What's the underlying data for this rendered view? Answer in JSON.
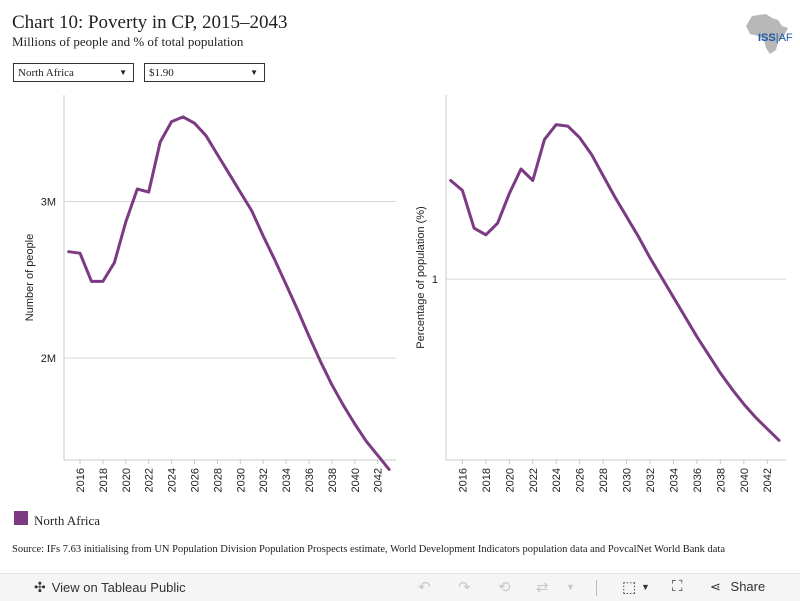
{
  "title": "Chart 10: Poverty in CP, 2015–2043",
  "subtitle": "Millions of people and % of total population",
  "logo": {
    "name": "ISS AF",
    "text": "ISS|AF"
  },
  "filters": {
    "region": {
      "value": "North Africa",
      "icon": "dropdown-arrow"
    },
    "threshold": {
      "value": "$1.90",
      "icon": "dropdown-arrow"
    }
  },
  "legend": {
    "label": "North Africa",
    "color": "#7b3a82"
  },
  "source": "Source: IFs 7.63 initialising from UN Population Division Population Prospects estimate, World Development Indicators population data and PovcalNet World Bank data",
  "toolbar": {
    "view_label": "View on Tableau Public",
    "share_label": "Share",
    "icons": [
      "tableau-icon",
      "undo-icon",
      "redo-icon",
      "revert-icon",
      "refresh-icon",
      "download-icon",
      "fullscreen-icon",
      "share-icon"
    ]
  },
  "chart_data": [
    {
      "type": "line",
      "xlabel": "",
      "ylabel": "Number of people",
      "x": [
        2015,
        2016,
        2017,
        2018,
        2019,
        2020,
        2021,
        2022,
        2023,
        2024,
        2025,
        2026,
        2027,
        2028,
        2029,
        2030,
        2031,
        2032,
        2033,
        2034,
        2035,
        2036,
        2037,
        2038,
        2039,
        2040,
        2041,
        2042,
        2043
      ],
      "series": [
        {
          "name": "North Africa",
          "color": "#7b3a82",
          "values": [
            2.68,
            2.67,
            2.49,
            2.49,
            2.61,
            2.87,
            3.08,
            3.06,
            3.38,
            3.51,
            3.54,
            3.5,
            3.42,
            3.3,
            3.18,
            3.06,
            2.94,
            2.78,
            2.63,
            2.47,
            2.31,
            2.14,
            1.98,
            1.83,
            1.7,
            1.58,
            1.47,
            1.38,
            1.29
          ]
        }
      ],
      "yticks": [
        {
          "value": 2.0,
          "label": "2M"
        },
        {
          "value": 3.0,
          "label": "3M"
        }
      ],
      "ylim": [
        1.35,
        3.68
      ],
      "xticks": [
        2016,
        2018,
        2020,
        2022,
        2024,
        2026,
        2028,
        2030,
        2032,
        2034,
        2036,
        2038,
        2040,
        2042
      ],
      "grid": true
    },
    {
      "type": "line",
      "xlabel": "",
      "ylabel": "Percentage of population (%)",
      "x": [
        2015,
        2016,
        2017,
        2018,
        2019,
        2020,
        2021,
        2022,
        2023,
        2024,
        2025,
        2026,
        2027,
        2028,
        2029,
        2030,
        2031,
        2032,
        2033,
        2034,
        2035,
        2036,
        2037,
        2038,
        2039,
        2040,
        2041,
        2042,
        2043
      ],
      "series": [
        {
          "name": "North Africa",
          "color": "#7b3a82",
          "values": [
            1.6,
            1.54,
            1.31,
            1.27,
            1.34,
            1.52,
            1.67,
            1.6,
            1.85,
            1.94,
            1.93,
            1.86,
            1.76,
            1.63,
            1.5,
            1.38,
            1.26,
            1.13,
            1.01,
            0.89,
            0.77,
            0.65,
            0.54,
            0.43,
            0.33,
            0.24,
            0.16,
            0.09,
            0.02
          ]
        }
      ],
      "yticks": [
        {
          "value": 1.0,
          "label": "1"
        }
      ],
      "ylim": [
        -0.1,
        2.12
      ],
      "xticks": [
        2016,
        2018,
        2020,
        2022,
        2024,
        2026,
        2028,
        2030,
        2032,
        2034,
        2036,
        2038,
        2040,
        2042
      ],
      "grid": true
    }
  ]
}
